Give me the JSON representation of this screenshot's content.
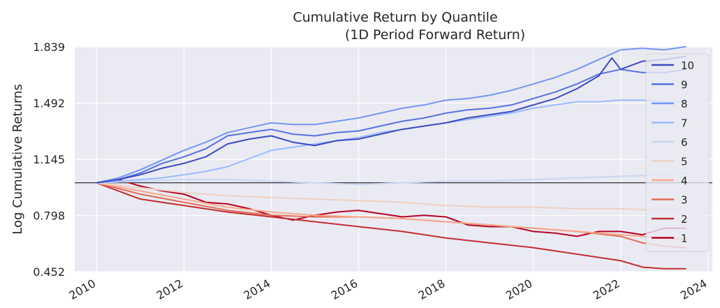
{
  "chart_data": {
    "type": "line",
    "title": "Cumulative Return by Quantile",
    "subtitle": "(1D Period Forward Return)",
    "xlabel": "",
    "ylabel": "Log Cumulative Returns",
    "xlim": [
      2009.5,
      2024.1
    ],
    "ylim": [
      0.452,
      1.839
    ],
    "yticks": [
      0.452,
      0.798,
      1.145,
      1.492,
      1.839
    ],
    "ytick_labels": [
      "0.452",
      "0.798",
      "1.145",
      "1.492",
      "1.839"
    ],
    "xticks": [
      2010,
      2012,
      2014,
      2016,
      2018,
      2020,
      2022,
      2024
    ],
    "xtick_labels": [
      "2010",
      "2012",
      "2014",
      "2016",
      "2018",
      "2020",
      "2022",
      "2024"
    ],
    "reference_line": 1.0,
    "grid": true,
    "background": "#eaeaf2",
    "legend_placement": "right",
    "series": [
      {
        "name": "10",
        "color": "#3b4cc0",
        "x": [
          2010.0,
          2010.5,
          2011.0,
          2011.5,
          2012.0,
          2012.5,
          2013.0,
          2013.5,
          2014.0,
          2014.5,
          2015.0,
          2015.5,
          2016.0,
          2016.5,
          2017.0,
          2017.5,
          2018.0,
          2018.5,
          2019.0,
          2019.5,
          2020.0,
          2020.5,
          2021.0,
          2021.5,
          2021.8,
          2022.0,
          2022.5,
          2023.0,
          2023.5
        ],
        "y": [
          1.0,
          1.02,
          1.05,
          1.09,
          1.12,
          1.16,
          1.24,
          1.27,
          1.29,
          1.25,
          1.23,
          1.26,
          1.27,
          1.3,
          1.33,
          1.35,
          1.37,
          1.4,
          1.42,
          1.44,
          1.48,
          1.52,
          1.58,
          1.66,
          1.77,
          1.7,
          1.75,
          1.76,
          1.78
        ]
      },
      {
        "name": "9",
        "color": "#5673e0",
        "x": [
          2010.0,
          2010.5,
          2011.0,
          2011.5,
          2012.0,
          2012.5,
          2013.0,
          2013.5,
          2014.0,
          2014.5,
          2015.0,
          2015.5,
          2016.0,
          2016.5,
          2017.0,
          2017.5,
          2018.0,
          2018.5,
          2019.0,
          2019.5,
          2020.0,
          2020.5,
          2021.0,
          2021.5,
          2022.0,
          2022.5,
          2023.0,
          2023.5
        ],
        "y": [
          1.0,
          1.02,
          1.06,
          1.12,
          1.16,
          1.21,
          1.29,
          1.31,
          1.33,
          1.3,
          1.29,
          1.31,
          1.32,
          1.35,
          1.38,
          1.4,
          1.43,
          1.45,
          1.46,
          1.48,
          1.52,
          1.56,
          1.61,
          1.67,
          1.7,
          1.68,
          1.68,
          1.7
        ]
      },
      {
        "name": "8",
        "color": "#7396f5",
        "x": [
          2010.0,
          2010.5,
          2011.0,
          2011.5,
          2012.0,
          2012.5,
          2013.0,
          2013.5,
          2014.0,
          2014.5,
          2015.0,
          2015.5,
          2016.0,
          2016.5,
          2017.0,
          2017.5,
          2018.0,
          2018.5,
          2019.0,
          2019.5,
          2020.0,
          2020.5,
          2021.0,
          2021.5,
          2022.0,
          2022.5,
          2023.0,
          2023.5
        ],
        "y": [
          1.0,
          1.03,
          1.08,
          1.14,
          1.2,
          1.25,
          1.31,
          1.34,
          1.37,
          1.36,
          1.36,
          1.38,
          1.4,
          1.43,
          1.46,
          1.48,
          1.51,
          1.52,
          1.54,
          1.57,
          1.61,
          1.65,
          1.7,
          1.76,
          1.82,
          1.83,
          1.82,
          1.84
        ]
      },
      {
        "name": "7",
        "color": "#9abbff",
        "x": [
          2010.0,
          2010.5,
          2011.0,
          2011.5,
          2012.0,
          2012.5,
          2013.0,
          2013.5,
          2014.0,
          2014.5,
          2015.0,
          2015.5,
          2016.0,
          2016.5,
          2017.0,
          2017.5,
          2018.0,
          2018.5,
          2019.0,
          2019.5,
          2020.0,
          2020.5,
          2021.0,
          2021.5,
          2022.0,
          2022.5,
          2023.0,
          2023.5
        ],
        "y": [
          1.0,
          1.01,
          1.02,
          1.03,
          1.05,
          1.07,
          1.1,
          1.15,
          1.2,
          1.22,
          1.24,
          1.26,
          1.28,
          1.31,
          1.33,
          1.35,
          1.37,
          1.39,
          1.41,
          1.43,
          1.46,
          1.48,
          1.5,
          1.5,
          1.51,
          1.51,
          1.5,
          1.5
        ]
      },
      {
        "name": "6",
        "color": "#c9d7f0",
        "x": [
          2010.0,
          2011.0,
          2012.0,
          2013.0,
          2014.0,
          2015.0,
          2016.0,
          2017.0,
          2018.0,
          2019.0,
          2020.0,
          2021.0,
          2022.0,
          2023.0,
          2023.5
        ],
        "y": [
          1.0,
          1.01,
          1.02,
          1.02,
          1.01,
          1.0,
          0.99,
          1.0,
          1.01,
          1.01,
          1.02,
          1.03,
          1.04,
          1.05,
          1.06
        ]
      },
      {
        "name": "5",
        "color": "#edd1c2",
        "x": [
          2010.0,
          2011.0,
          2012.0,
          2013.0,
          2014.0,
          2015.0,
          2016.0,
          2017.0,
          2018.0,
          2019.0,
          2020.0,
          2021.0,
          2022.0,
          2023.0,
          2023.5
        ],
        "y": [
          1.0,
          0.97,
          0.94,
          0.92,
          0.91,
          0.9,
          0.89,
          0.88,
          0.86,
          0.85,
          0.85,
          0.84,
          0.84,
          0.83,
          0.84
        ]
      },
      {
        "name": "4",
        "color": "#f7a889",
        "x": [
          2010.0,
          2011.0,
          2012.0,
          2013.0,
          2014.0,
          2015.0,
          2016.0,
          2017.0,
          2018.0,
          2019.0,
          2020.0,
          2021.0,
          2022.0,
          2023.0,
          2023.5
        ],
        "y": [
          1.0,
          0.95,
          0.9,
          0.85,
          0.82,
          0.8,
          0.79,
          0.78,
          0.76,
          0.74,
          0.72,
          0.7,
          0.68,
          0.66,
          0.65
        ]
      },
      {
        "name": "3",
        "color": "#e36c55",
        "x": [
          2010.0,
          2011.0,
          2012.0,
          2013.0,
          2014.0,
          2015.0,
          2016.0,
          2017.0,
          2018.0,
          2019.0,
          2020.0,
          2021.0,
          2022.0,
          2022.5,
          2023.0,
          2023.5
        ],
        "y": [
          1.0,
          0.93,
          0.88,
          0.83,
          0.8,
          0.79,
          0.79,
          0.78,
          0.76,
          0.74,
          0.72,
          0.7,
          0.67,
          0.63,
          0.61,
          0.6
        ]
      },
      {
        "name": "2",
        "color": "#c32e31",
        "x": [
          2010.0,
          2011.0,
          2012.0,
          2013.0,
          2014.0,
          2015.0,
          2016.0,
          2017.0,
          2018.0,
          2019.0,
          2020.0,
          2021.0,
          2022.0,
          2022.5,
          2023.0,
          2023.5
        ],
        "y": [
          1.0,
          0.9,
          0.86,
          0.82,
          0.79,
          0.76,
          0.73,
          0.7,
          0.66,
          0.63,
          0.6,
          0.56,
          0.52,
          0.48,
          0.47,
          0.47
        ]
      },
      {
        "name": "1",
        "color": "#b40426",
        "x": [
          2010.0,
          2010.5,
          2011.0,
          2011.5,
          2012.0,
          2012.5,
          2013.0,
          2013.5,
          2014.0,
          2014.5,
          2015.0,
          2015.5,
          2016.0,
          2016.5,
          2017.0,
          2017.5,
          2018.0,
          2018.5,
          2019.0,
          2019.5,
          2020.0,
          2020.5,
          2021.0,
          2021.5,
          2022.0,
          2022.5,
          2023.0,
          2023.5
        ],
        "y": [
          1.0,
          1.02,
          0.98,
          0.95,
          0.93,
          0.88,
          0.87,
          0.84,
          0.8,
          0.77,
          0.8,
          0.82,
          0.83,
          0.81,
          0.79,
          0.8,
          0.79,
          0.74,
          0.73,
          0.73,
          0.7,
          0.69,
          0.67,
          0.7,
          0.7,
          0.68,
          0.72,
          0.72
        ]
      }
    ]
  }
}
